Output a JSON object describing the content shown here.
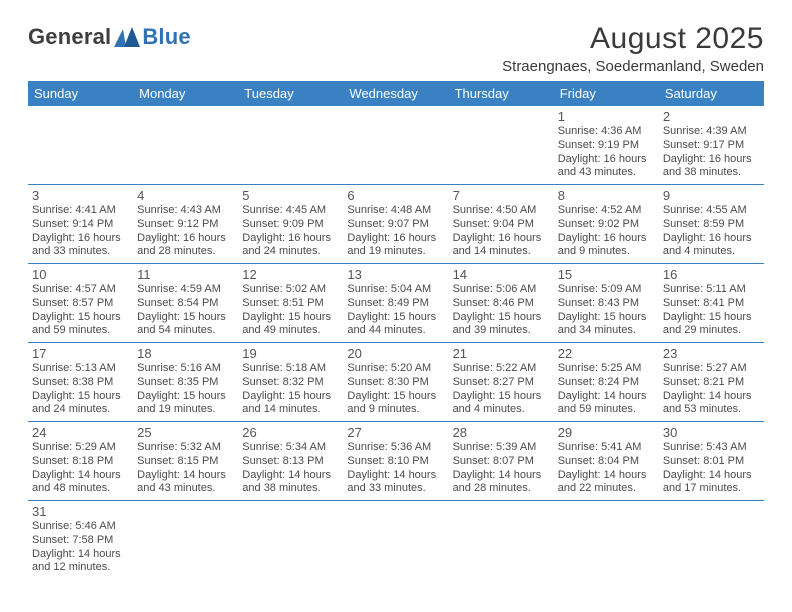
{
  "logo": {
    "part1": "General",
    "part2": "Blue"
  },
  "title": "August 2025",
  "location": "Straengnaes, Soedermanland, Sweden",
  "colors": {
    "header_bg": "#3a81c4",
    "header_text": "#ffffff",
    "cell_border": "#3a81c4",
    "text": "#4b4b4b",
    "logo_dark": "#3f3f3f",
    "logo_blue": "#2f73b6"
  },
  "weekdays": [
    "Sunday",
    "Monday",
    "Tuesday",
    "Wednesday",
    "Thursday",
    "Friday",
    "Saturday"
  ],
  "weeks": [
    [
      null,
      null,
      null,
      null,
      null,
      {
        "n": "1",
        "sr": "Sunrise: 4:36 AM",
        "ss": "Sunset: 9:19 PM",
        "d1": "Daylight: 16 hours",
        "d2": "and 43 minutes."
      },
      {
        "n": "2",
        "sr": "Sunrise: 4:39 AM",
        "ss": "Sunset: 9:17 PM",
        "d1": "Daylight: 16 hours",
        "d2": "and 38 minutes."
      }
    ],
    [
      {
        "n": "3",
        "sr": "Sunrise: 4:41 AM",
        "ss": "Sunset: 9:14 PM",
        "d1": "Daylight: 16 hours",
        "d2": "and 33 minutes."
      },
      {
        "n": "4",
        "sr": "Sunrise: 4:43 AM",
        "ss": "Sunset: 9:12 PM",
        "d1": "Daylight: 16 hours",
        "d2": "and 28 minutes."
      },
      {
        "n": "5",
        "sr": "Sunrise: 4:45 AM",
        "ss": "Sunset: 9:09 PM",
        "d1": "Daylight: 16 hours",
        "d2": "and 24 minutes."
      },
      {
        "n": "6",
        "sr": "Sunrise: 4:48 AM",
        "ss": "Sunset: 9:07 PM",
        "d1": "Daylight: 16 hours",
        "d2": "and 19 minutes."
      },
      {
        "n": "7",
        "sr": "Sunrise: 4:50 AM",
        "ss": "Sunset: 9:04 PM",
        "d1": "Daylight: 16 hours",
        "d2": "and 14 minutes."
      },
      {
        "n": "8",
        "sr": "Sunrise: 4:52 AM",
        "ss": "Sunset: 9:02 PM",
        "d1": "Daylight: 16 hours",
        "d2": "and 9 minutes."
      },
      {
        "n": "9",
        "sr": "Sunrise: 4:55 AM",
        "ss": "Sunset: 8:59 PM",
        "d1": "Daylight: 16 hours",
        "d2": "and 4 minutes."
      }
    ],
    [
      {
        "n": "10",
        "sr": "Sunrise: 4:57 AM",
        "ss": "Sunset: 8:57 PM",
        "d1": "Daylight: 15 hours",
        "d2": "and 59 minutes."
      },
      {
        "n": "11",
        "sr": "Sunrise: 4:59 AM",
        "ss": "Sunset: 8:54 PM",
        "d1": "Daylight: 15 hours",
        "d2": "and 54 minutes."
      },
      {
        "n": "12",
        "sr": "Sunrise: 5:02 AM",
        "ss": "Sunset: 8:51 PM",
        "d1": "Daylight: 15 hours",
        "d2": "and 49 minutes."
      },
      {
        "n": "13",
        "sr": "Sunrise: 5:04 AM",
        "ss": "Sunset: 8:49 PM",
        "d1": "Daylight: 15 hours",
        "d2": "and 44 minutes."
      },
      {
        "n": "14",
        "sr": "Sunrise: 5:06 AM",
        "ss": "Sunset: 8:46 PM",
        "d1": "Daylight: 15 hours",
        "d2": "and 39 minutes."
      },
      {
        "n": "15",
        "sr": "Sunrise: 5:09 AM",
        "ss": "Sunset: 8:43 PM",
        "d1": "Daylight: 15 hours",
        "d2": "and 34 minutes."
      },
      {
        "n": "16",
        "sr": "Sunrise: 5:11 AM",
        "ss": "Sunset: 8:41 PM",
        "d1": "Daylight: 15 hours",
        "d2": "and 29 minutes."
      }
    ],
    [
      {
        "n": "17",
        "sr": "Sunrise: 5:13 AM",
        "ss": "Sunset: 8:38 PM",
        "d1": "Daylight: 15 hours",
        "d2": "and 24 minutes."
      },
      {
        "n": "18",
        "sr": "Sunrise: 5:16 AM",
        "ss": "Sunset: 8:35 PM",
        "d1": "Daylight: 15 hours",
        "d2": "and 19 minutes."
      },
      {
        "n": "19",
        "sr": "Sunrise: 5:18 AM",
        "ss": "Sunset: 8:32 PM",
        "d1": "Daylight: 15 hours",
        "d2": "and 14 minutes."
      },
      {
        "n": "20",
        "sr": "Sunrise: 5:20 AM",
        "ss": "Sunset: 8:30 PM",
        "d1": "Daylight: 15 hours",
        "d2": "and 9 minutes."
      },
      {
        "n": "21",
        "sr": "Sunrise: 5:22 AM",
        "ss": "Sunset: 8:27 PM",
        "d1": "Daylight: 15 hours",
        "d2": "and 4 minutes."
      },
      {
        "n": "22",
        "sr": "Sunrise: 5:25 AM",
        "ss": "Sunset: 8:24 PM",
        "d1": "Daylight: 14 hours",
        "d2": "and 59 minutes."
      },
      {
        "n": "23",
        "sr": "Sunrise: 5:27 AM",
        "ss": "Sunset: 8:21 PM",
        "d1": "Daylight: 14 hours",
        "d2": "and 53 minutes."
      }
    ],
    [
      {
        "n": "24",
        "sr": "Sunrise: 5:29 AM",
        "ss": "Sunset: 8:18 PM",
        "d1": "Daylight: 14 hours",
        "d2": "and 48 minutes."
      },
      {
        "n": "25",
        "sr": "Sunrise: 5:32 AM",
        "ss": "Sunset: 8:15 PM",
        "d1": "Daylight: 14 hours",
        "d2": "and 43 minutes."
      },
      {
        "n": "26",
        "sr": "Sunrise: 5:34 AM",
        "ss": "Sunset: 8:13 PM",
        "d1": "Daylight: 14 hours",
        "d2": "and 38 minutes."
      },
      {
        "n": "27",
        "sr": "Sunrise: 5:36 AM",
        "ss": "Sunset: 8:10 PM",
        "d1": "Daylight: 14 hours",
        "d2": "and 33 minutes."
      },
      {
        "n": "28",
        "sr": "Sunrise: 5:39 AM",
        "ss": "Sunset: 8:07 PM",
        "d1": "Daylight: 14 hours",
        "d2": "and 28 minutes."
      },
      {
        "n": "29",
        "sr": "Sunrise: 5:41 AM",
        "ss": "Sunset: 8:04 PM",
        "d1": "Daylight: 14 hours",
        "d2": "and 22 minutes."
      },
      {
        "n": "30",
        "sr": "Sunrise: 5:43 AM",
        "ss": "Sunset: 8:01 PM",
        "d1": "Daylight: 14 hours",
        "d2": "and 17 minutes."
      }
    ],
    [
      {
        "n": "31",
        "sr": "Sunrise: 5:46 AM",
        "ss": "Sunset: 7:58 PM",
        "d1": "Daylight: 14 hours",
        "d2": "and 12 minutes."
      },
      null,
      null,
      null,
      null,
      null,
      null
    ]
  ]
}
